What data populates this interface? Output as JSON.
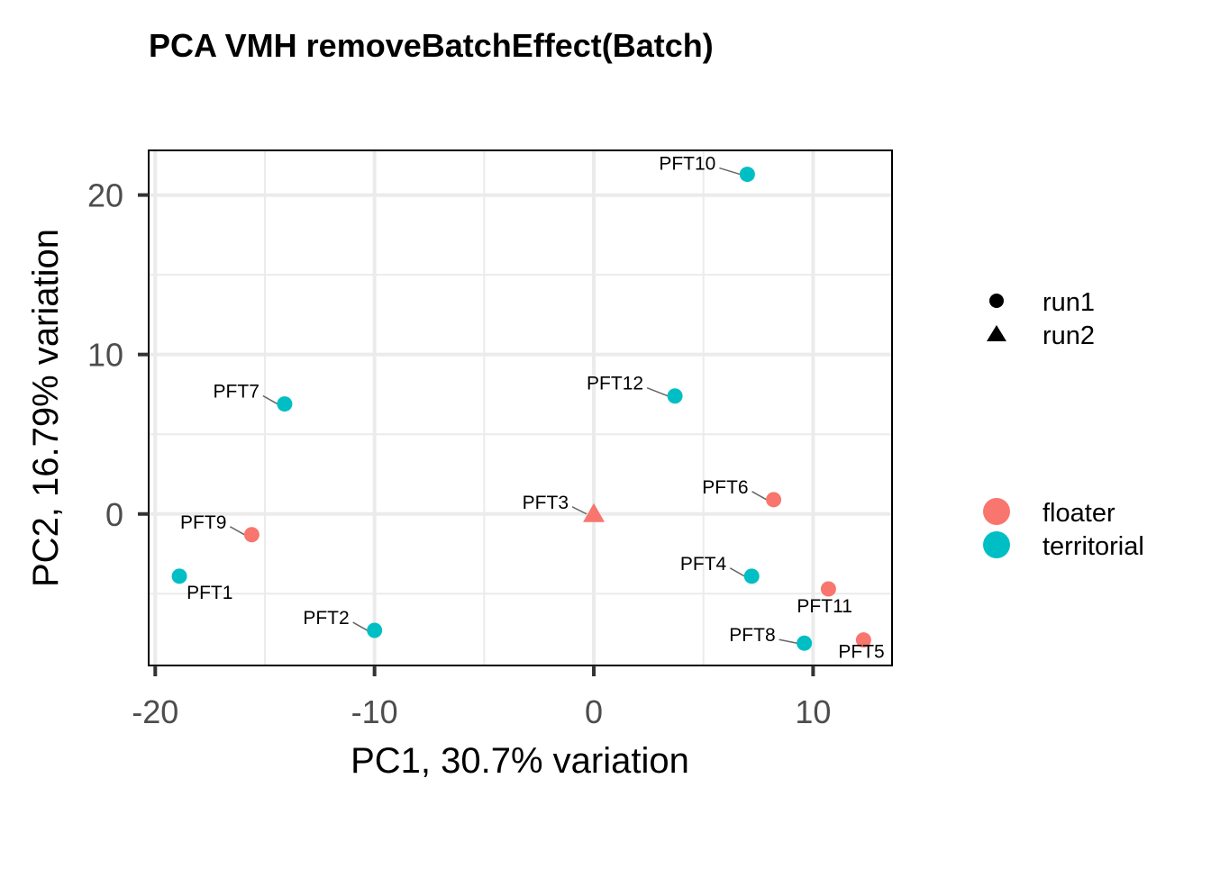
{
  "chart_data": {
    "type": "scatter",
    "title": "PCA VMH removeBatchEffect(Batch)",
    "xlabel": "PC1, 30.7% variation",
    "ylabel": "PC2, 16.79% variation",
    "xlim": [
      -20.3,
      13.6
    ],
    "ylim": [
      -9.5,
      22.8
    ],
    "xticks": [
      -20,
      -10,
      0,
      10
    ],
    "yticks": [
      0,
      10,
      20
    ],
    "xtick_labels": [
      "-20",
      "-10",
      "0",
      "10"
    ],
    "ytick_labels": [
      "0",
      "10",
      "20"
    ],
    "grid": true,
    "legend_position": "right",
    "shape_legend": [
      {
        "label": "run1",
        "shape": "circle"
      },
      {
        "label": "run2",
        "shape": "triangle"
      }
    ],
    "color_legend": [
      {
        "label": "floater",
        "color": "#F8766D"
      },
      {
        "label": "territorial",
        "color": "#00BFC4"
      }
    ],
    "points": [
      {
        "label": "PFT10",
        "x": 7.0,
        "y": 21.3,
        "group": "territorial",
        "batch": "run1"
      },
      {
        "label": "PFT7",
        "x": -14.1,
        "y": 6.9,
        "group": "territorial",
        "batch": "run1"
      },
      {
        "label": "PFT12",
        "x": 3.7,
        "y": 7.4,
        "group": "territorial",
        "batch": "run1"
      },
      {
        "label": "PFT6",
        "x": 8.2,
        "y": 0.9,
        "group": "floater",
        "batch": "run1"
      },
      {
        "label": "PFT3",
        "x": 0.0,
        "y": 0.0,
        "group": "floater",
        "batch": "run2"
      },
      {
        "label": "PFT9",
        "x": -15.6,
        "y": -1.3,
        "group": "floater",
        "batch": "run1"
      },
      {
        "label": "PFT1",
        "x": -18.9,
        "y": -3.9,
        "group": "territorial",
        "batch": "run1"
      },
      {
        "label": "PFT4",
        "x": 7.2,
        "y": -3.9,
        "group": "territorial",
        "batch": "run1"
      },
      {
        "label": "PFT11",
        "x": 10.7,
        "y": -4.7,
        "group": "floater",
        "batch": "run1"
      },
      {
        "label": "PFT2",
        "x": -10.0,
        "y": -7.3,
        "group": "territorial",
        "batch": "run1"
      },
      {
        "label": "PFT8",
        "x": 9.6,
        "y": -8.1,
        "group": "territorial",
        "batch": "run1"
      },
      {
        "label": "PFT5",
        "x": 12.3,
        "y": -7.9,
        "group": "floater",
        "batch": "run1"
      }
    ]
  }
}
